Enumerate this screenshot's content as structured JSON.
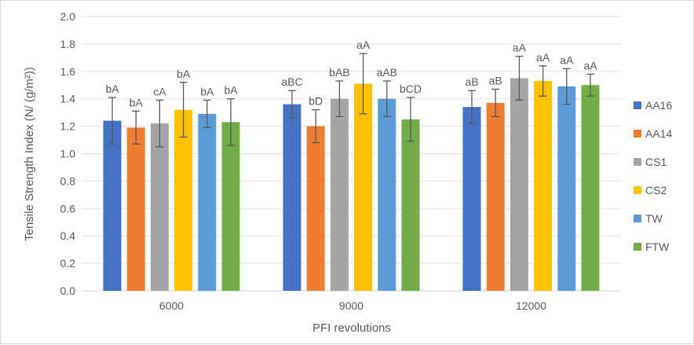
{
  "chart_data": {
    "type": "bar",
    "title": "",
    "xlabel": "PFI revolutions",
    "ylabel": "Tensile Strength Index (N/ (g/m²))",
    "ylim": [
      0,
      2.0
    ],
    "yticks": [
      "0.0",
      "0.2",
      "0.4",
      "0.6",
      "0.8",
      "1.0",
      "1.2",
      "1.4",
      "1.6",
      "1.8",
      "2.0"
    ],
    "grid": true,
    "legend_position": "right",
    "categories": [
      "6000",
      "9000",
      "12000"
    ],
    "series": [
      {
        "name": "AA16",
        "color": "#4472C4",
        "values": [
          1.24,
          1.36,
          1.34
        ],
        "errors": [
          0.17,
          0.1,
          0.12
        ],
        "labels": [
          "bA",
          "aBC",
          "aB"
        ]
      },
      {
        "name": "AA14",
        "color": "#ED7D31",
        "values": [
          1.19,
          1.2,
          1.37
        ],
        "errors": [
          0.12,
          0.12,
          0.1
        ],
        "labels": [
          "bA",
          "bD",
          "aB"
        ]
      },
      {
        "name": "CS1",
        "color": "#A5A5A5",
        "values": [
          1.22,
          1.4,
          1.55
        ],
        "errors": [
          0.17,
          0.13,
          0.16
        ],
        "labels": [
          "cA",
          "bAB",
          "aA"
        ]
      },
      {
        "name": "CS2",
        "color": "#FFC000",
        "values": [
          1.32,
          1.51,
          1.53
        ],
        "errors": [
          0.2,
          0.22,
          0.11
        ],
        "labels": [
          "bA",
          "aA",
          "aA"
        ]
      },
      {
        "name": "TW",
        "color": "#5B9BD5",
        "values": [
          1.29,
          1.4,
          1.49
        ],
        "errors": [
          0.1,
          0.13,
          0.13
        ],
        "labels": [
          "bA",
          "aAB",
          "aA"
        ]
      },
      {
        "name": "FTW",
        "color": "#70AD47",
        "values": [
          1.23,
          1.25,
          1.5
        ],
        "errors": [
          0.17,
          0.16,
          0.08
        ],
        "labels": [
          "bA",
          "bCD",
          "aA"
        ]
      }
    ]
  }
}
